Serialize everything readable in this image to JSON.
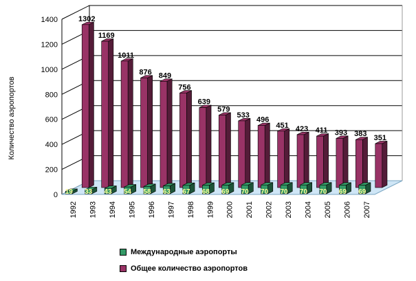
{
  "chart_data": {
    "type": "bar",
    "categories": [
      "1992",
      "1993",
      "1994",
      "1995",
      "1996",
      "1997",
      "1998",
      "1999",
      "2000",
      "2001",
      "2002",
      "2003",
      "2004",
      "2005",
      "2006",
      "2007"
    ],
    "series": [
      {
        "name": "Международные аэропорты",
        "values": [
          19,
          33,
          43,
          54,
          58,
          63,
          67,
          68,
          69,
          70,
          70,
          70,
          70,
          70,
          69,
          69
        ]
      },
      {
        "name": "Общее количество аэропортов",
        "values": [
          1302,
          1169,
          1011,
          876,
          849,
          756,
          639,
          579,
          533,
          496,
          451,
          423,
          411,
          393,
          383,
          351
        ]
      }
    ],
    "ylabel": "Количество аэропортов",
    "ylim": [
      0,
      1400
    ],
    "yticks": [
      0,
      200,
      400,
      600,
      800,
      1000,
      1200,
      1400
    ],
    "grid": true,
    "legend_position": "bottom",
    "colors": {
      "international": "#339966",
      "total": "#993366",
      "international_label": "#ffff99",
      "total_label": "#000000",
      "floor": "#cfe6f6"
    }
  }
}
